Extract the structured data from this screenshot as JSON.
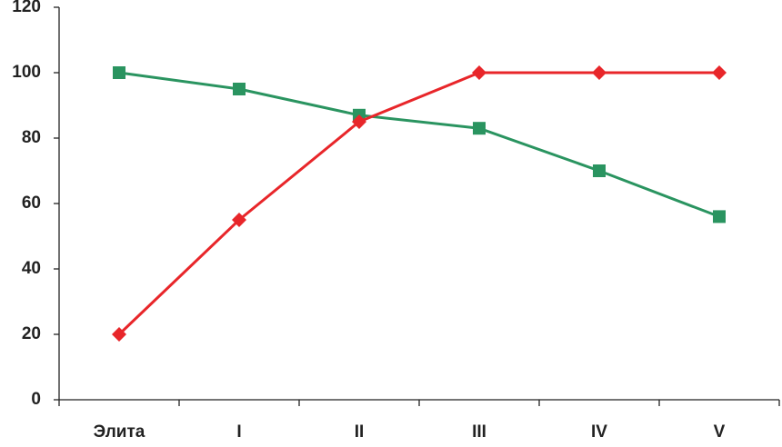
{
  "chart_data": {
    "type": "line",
    "categories": [
      "Элита",
      "I",
      "II",
      "III",
      "IV",
      "V"
    ],
    "series": [
      {
        "color": "#2a9460",
        "marker": "square",
        "values": [
          100,
          95,
          87,
          83,
          70,
          56
        ]
      },
      {
        "color": "#e8262a",
        "marker": "diamond",
        "values": [
          20,
          55,
          85,
          100,
          100,
          100
        ]
      }
    ],
    "ylim": [
      0,
      120
    ],
    "yticks": [
      0,
      20,
      40,
      60,
      80,
      100,
      120
    ],
    "grid": false
  }
}
